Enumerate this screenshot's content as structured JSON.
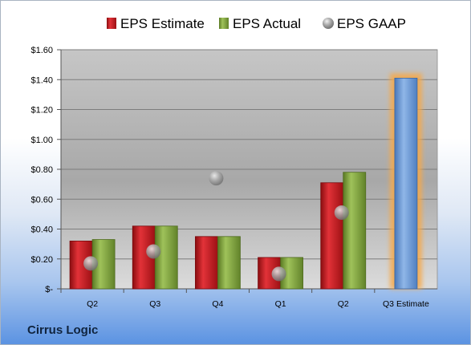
{
  "company": "Cirrus Logic",
  "chart_data": {
    "type": "bar",
    "categories": [
      "Q2",
      "Q3",
      "Q4",
      "Q1",
      "Q2",
      "Q3 Estimate"
    ],
    "series": [
      {
        "name": "EPS Estimate",
        "values": [
          0.32,
          0.42,
          0.35,
          0.21,
          0.71,
          null
        ],
        "color": "#c0161c"
      },
      {
        "name": "EPS Actual",
        "values": [
          0.33,
          0.42,
          0.35,
          0.21,
          0.78,
          null
        ],
        "color": "#7fa23a"
      },
      {
        "name": "EPS GAAP",
        "values": [
          0.17,
          0.25,
          0.74,
          0.1,
          0.51,
          null
        ],
        "color": "#a3a3a3",
        "marker": "sphere"
      }
    ],
    "forecast": {
      "category": "Q3 Estimate",
      "value": 1.41,
      "color": "#6a9bd8",
      "highlight": "#f6a94a"
    },
    "yticks": [
      {
        "value": 0,
        "label": "$-"
      },
      {
        "value": 0.2,
        "label": "$0.20"
      },
      {
        "value": 0.4,
        "label": "$0.40"
      },
      {
        "value": 0.6,
        "label": "$0.60"
      },
      {
        "value": 0.8,
        "label": "$0.80"
      },
      {
        "value": 1.0,
        "label": "$1.00"
      },
      {
        "value": 1.2,
        "label": "$1.20"
      },
      {
        "value": 1.4,
        "label": "$1.40"
      },
      {
        "value": 1.6,
        "label": "$1.60"
      }
    ],
    "ylim": [
      0,
      1.6
    ],
    "grid": true,
    "legend_position": "top"
  }
}
